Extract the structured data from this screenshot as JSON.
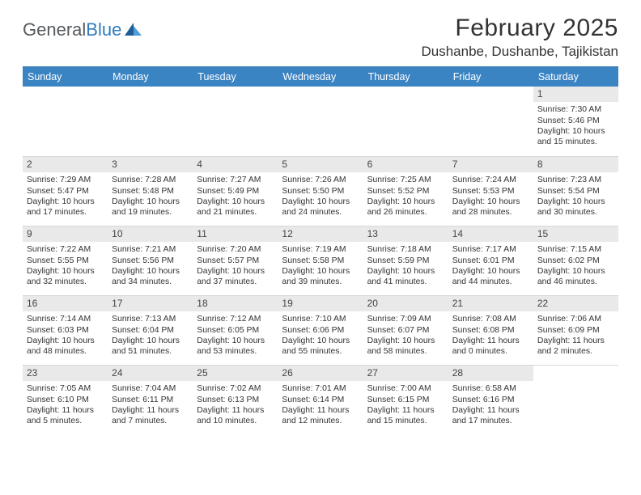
{
  "logo": {
    "text_gray": "General",
    "text_blue": "Blue"
  },
  "title": "February 2025",
  "location": "Dushanbe, Dushanbe, Tajikistan",
  "colors": {
    "header_bar": "#3b84c4",
    "header_bar_top": "#3b7fb6",
    "day_strip": "#e9e9e9",
    "rule": "#d7d7d7",
    "text": "#333333",
    "logo_gray": "#555a5f",
    "logo_blue": "#2f7bbf",
    "tri_dark": "#1f5d99",
    "tri_light": "#4c9ed9"
  },
  "dow": [
    "Sunday",
    "Monday",
    "Tuesday",
    "Wednesday",
    "Thursday",
    "Friday",
    "Saturday"
  ],
  "weeks": [
    [
      {
        "empty": true
      },
      {
        "empty": true
      },
      {
        "empty": true
      },
      {
        "empty": true
      },
      {
        "empty": true
      },
      {
        "empty": true
      },
      {
        "day": "1",
        "sunrise": "Sunrise: 7:30 AM",
        "sunset": "Sunset: 5:46 PM",
        "dl1": "Daylight: 10 hours",
        "dl2": "and 15 minutes."
      }
    ],
    [
      {
        "day": "2",
        "sunrise": "Sunrise: 7:29 AM",
        "sunset": "Sunset: 5:47 PM",
        "dl1": "Daylight: 10 hours",
        "dl2": "and 17 minutes."
      },
      {
        "day": "3",
        "sunrise": "Sunrise: 7:28 AM",
        "sunset": "Sunset: 5:48 PM",
        "dl1": "Daylight: 10 hours",
        "dl2": "and 19 minutes."
      },
      {
        "day": "4",
        "sunrise": "Sunrise: 7:27 AM",
        "sunset": "Sunset: 5:49 PM",
        "dl1": "Daylight: 10 hours",
        "dl2": "and 21 minutes."
      },
      {
        "day": "5",
        "sunrise": "Sunrise: 7:26 AM",
        "sunset": "Sunset: 5:50 PM",
        "dl1": "Daylight: 10 hours",
        "dl2": "and 24 minutes."
      },
      {
        "day": "6",
        "sunrise": "Sunrise: 7:25 AM",
        "sunset": "Sunset: 5:52 PM",
        "dl1": "Daylight: 10 hours",
        "dl2": "and 26 minutes."
      },
      {
        "day": "7",
        "sunrise": "Sunrise: 7:24 AM",
        "sunset": "Sunset: 5:53 PM",
        "dl1": "Daylight: 10 hours",
        "dl2": "and 28 minutes."
      },
      {
        "day": "8",
        "sunrise": "Sunrise: 7:23 AM",
        "sunset": "Sunset: 5:54 PM",
        "dl1": "Daylight: 10 hours",
        "dl2": "and 30 minutes."
      }
    ],
    [
      {
        "day": "9",
        "sunrise": "Sunrise: 7:22 AM",
        "sunset": "Sunset: 5:55 PM",
        "dl1": "Daylight: 10 hours",
        "dl2": "and 32 minutes."
      },
      {
        "day": "10",
        "sunrise": "Sunrise: 7:21 AM",
        "sunset": "Sunset: 5:56 PM",
        "dl1": "Daylight: 10 hours",
        "dl2": "and 34 minutes."
      },
      {
        "day": "11",
        "sunrise": "Sunrise: 7:20 AM",
        "sunset": "Sunset: 5:57 PM",
        "dl1": "Daylight: 10 hours",
        "dl2": "and 37 minutes."
      },
      {
        "day": "12",
        "sunrise": "Sunrise: 7:19 AM",
        "sunset": "Sunset: 5:58 PM",
        "dl1": "Daylight: 10 hours",
        "dl2": "and 39 minutes."
      },
      {
        "day": "13",
        "sunrise": "Sunrise: 7:18 AM",
        "sunset": "Sunset: 5:59 PM",
        "dl1": "Daylight: 10 hours",
        "dl2": "and 41 minutes."
      },
      {
        "day": "14",
        "sunrise": "Sunrise: 7:17 AM",
        "sunset": "Sunset: 6:01 PM",
        "dl1": "Daylight: 10 hours",
        "dl2": "and 44 minutes."
      },
      {
        "day": "15",
        "sunrise": "Sunrise: 7:15 AM",
        "sunset": "Sunset: 6:02 PM",
        "dl1": "Daylight: 10 hours",
        "dl2": "and 46 minutes."
      }
    ],
    [
      {
        "day": "16",
        "sunrise": "Sunrise: 7:14 AM",
        "sunset": "Sunset: 6:03 PM",
        "dl1": "Daylight: 10 hours",
        "dl2": "and 48 minutes."
      },
      {
        "day": "17",
        "sunrise": "Sunrise: 7:13 AM",
        "sunset": "Sunset: 6:04 PM",
        "dl1": "Daylight: 10 hours",
        "dl2": "and 51 minutes."
      },
      {
        "day": "18",
        "sunrise": "Sunrise: 7:12 AM",
        "sunset": "Sunset: 6:05 PM",
        "dl1": "Daylight: 10 hours",
        "dl2": "and 53 minutes."
      },
      {
        "day": "19",
        "sunrise": "Sunrise: 7:10 AM",
        "sunset": "Sunset: 6:06 PM",
        "dl1": "Daylight: 10 hours",
        "dl2": "and 55 minutes."
      },
      {
        "day": "20",
        "sunrise": "Sunrise: 7:09 AM",
        "sunset": "Sunset: 6:07 PM",
        "dl1": "Daylight: 10 hours",
        "dl2": "and 58 minutes."
      },
      {
        "day": "21",
        "sunrise": "Sunrise: 7:08 AM",
        "sunset": "Sunset: 6:08 PM",
        "dl1": "Daylight: 11 hours",
        "dl2": "and 0 minutes."
      },
      {
        "day": "22",
        "sunrise": "Sunrise: 7:06 AM",
        "sunset": "Sunset: 6:09 PM",
        "dl1": "Daylight: 11 hours",
        "dl2": "and 2 minutes."
      }
    ],
    [
      {
        "day": "23",
        "sunrise": "Sunrise: 7:05 AM",
        "sunset": "Sunset: 6:10 PM",
        "dl1": "Daylight: 11 hours",
        "dl2": "and 5 minutes."
      },
      {
        "day": "24",
        "sunrise": "Sunrise: 7:04 AM",
        "sunset": "Sunset: 6:11 PM",
        "dl1": "Daylight: 11 hours",
        "dl2": "and 7 minutes."
      },
      {
        "day": "25",
        "sunrise": "Sunrise: 7:02 AM",
        "sunset": "Sunset: 6:13 PM",
        "dl1": "Daylight: 11 hours",
        "dl2": "and 10 minutes."
      },
      {
        "day": "26",
        "sunrise": "Sunrise: 7:01 AM",
        "sunset": "Sunset: 6:14 PM",
        "dl1": "Daylight: 11 hours",
        "dl2": "and 12 minutes."
      },
      {
        "day": "27",
        "sunrise": "Sunrise: 7:00 AM",
        "sunset": "Sunset: 6:15 PM",
        "dl1": "Daylight: 11 hours",
        "dl2": "and 15 minutes."
      },
      {
        "day": "28",
        "sunrise": "Sunrise: 6:58 AM",
        "sunset": "Sunset: 6:16 PM",
        "dl1": "Daylight: 11 hours",
        "dl2": "and 17 minutes."
      },
      {
        "empty": true
      }
    ]
  ]
}
